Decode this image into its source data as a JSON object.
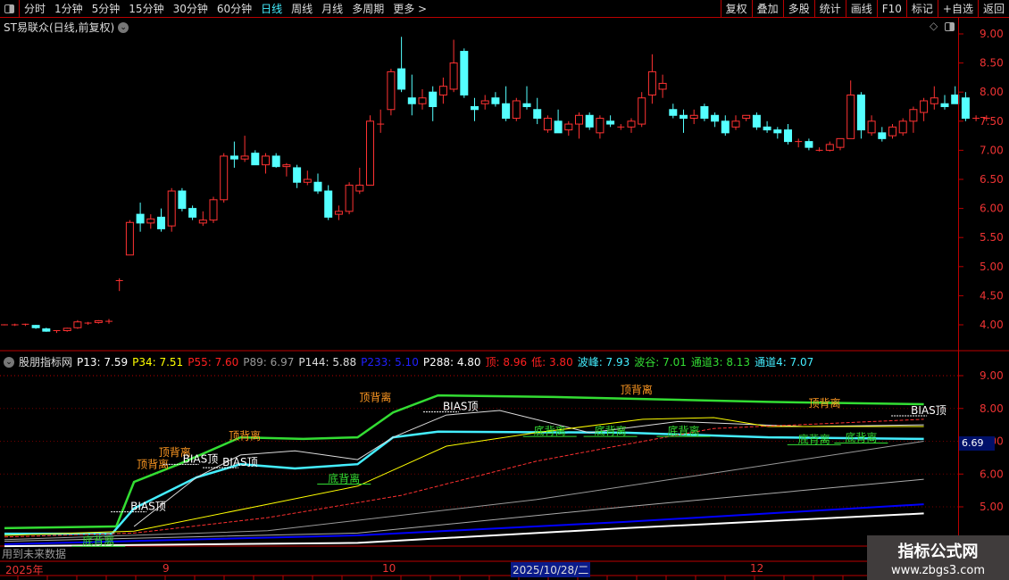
{
  "toolbar": {
    "periods": [
      "分时",
      "1分钟",
      "5分钟",
      "15分钟",
      "30分钟",
      "60分钟",
      "日线",
      "周线",
      "月线",
      "多周期",
      "更多 >"
    ],
    "active": "日线",
    "right_buttons": [
      "复权",
      "叠加",
      "多股",
      "统计",
      "画线",
      "F10",
      "标记",
      "+自选",
      "返回"
    ]
  },
  "stock_title": "ST易联众(日线,前复权)",
  "colors": {
    "up": "#ff3232",
    "down": "#54ffff",
    "grid_red": "#b00000",
    "green": "#33dd33",
    "cyan": "#44eeff",
    "yellow": "#ffff00",
    "blue": "#0000ff",
    "orange": "#ff9922"
  },
  "price_axis": {
    "ticks": [
      "9.00",
      "8.50",
      "8.00",
      "7.50",
      "7.00",
      "6.50",
      "6.00",
      "5.50",
      "5.00",
      "4.50",
      "4.00"
    ]
  },
  "candles": [
    [
      4.0,
      4.01,
      3.99,
      4.0
    ],
    [
      4.0,
      4.02,
      3.98,
      4.0
    ],
    [
      4.0,
      4.02,
      3.98,
      4.01
    ],
    [
      3.99,
      4.0,
      3.93,
      3.95
    ],
    [
      3.93,
      3.95,
      3.88,
      3.89
    ],
    [
      3.88,
      3.9,
      3.86,
      3.9
    ],
    [
      3.9,
      3.95,
      3.88,
      3.94
    ],
    [
      3.95,
      4.08,
      3.93,
      4.05
    ],
    [
      4.03,
      4.05,
      4.0,
      4.03
    ],
    [
      4.04,
      4.08,
      4.02,
      4.07
    ],
    [
      4.06,
      4.1,
      4.02,
      4.06
    ],
    [
      4.75,
      4.8,
      4.58,
      4.76
    ],
    [
      5.2,
      5.8,
      5.2,
      5.76
    ],
    [
      5.9,
      6.1,
      5.6,
      5.75
    ],
    [
      5.75,
      5.9,
      5.65,
      5.82
    ],
    [
      5.85,
      6.0,
      5.6,
      5.65
    ],
    [
      5.7,
      6.35,
      5.6,
      6.3
    ],
    [
      6.3,
      6.35,
      5.95,
      6.0
    ],
    [
      6.0,
      6.05,
      5.8,
      5.85
    ],
    [
      5.75,
      5.95,
      5.7,
      5.8
    ],
    [
      5.8,
      6.2,
      5.75,
      6.15
    ],
    [
      6.15,
      6.95,
      6.1,
      6.9
    ],
    [
      6.9,
      7.15,
      6.7,
      6.85
    ],
    [
      6.85,
      7.25,
      6.8,
      6.9
    ],
    [
      6.95,
      7.0,
      6.75,
      6.75
    ],
    [
      6.75,
      6.95,
      6.6,
      6.9
    ],
    [
      6.9,
      6.95,
      6.7,
      6.72
    ],
    [
      6.72,
      6.78,
      6.55,
      6.75
    ],
    [
      6.7,
      6.75,
      6.35,
      6.45
    ],
    [
      6.45,
      6.65,
      6.4,
      6.5
    ],
    [
      6.45,
      6.6,
      6.25,
      6.3
    ],
    [
      6.3,
      6.4,
      5.8,
      5.85
    ],
    [
      5.9,
      6.05,
      5.8,
      5.95
    ],
    [
      5.95,
      6.45,
      5.9,
      6.4
    ],
    [
      6.3,
      6.7,
      6.25,
      6.4
    ],
    [
      6.4,
      7.6,
      6.4,
      7.5
    ],
    [
      7.45,
      7.7,
      7.3,
      7.45
    ],
    [
      7.7,
      8.4,
      7.6,
      8.35
    ],
    [
      8.4,
      8.95,
      8.0,
      8.05
    ],
    [
      7.9,
      8.3,
      7.6,
      7.8
    ],
    [
      7.8,
      8.05,
      7.7,
      7.9
    ],
    [
      8.0,
      8.1,
      7.5,
      7.75
    ],
    [
      7.95,
      8.25,
      7.8,
      8.1
    ],
    [
      8.05,
      8.9,
      8.0,
      8.5
    ],
    [
      8.7,
      8.75,
      7.9,
      7.95
    ],
    [
      7.75,
      7.9,
      7.5,
      7.7
    ],
    [
      7.8,
      7.95,
      7.7,
      7.85
    ],
    [
      7.9,
      8.0,
      7.75,
      7.8
    ],
    [
      7.8,
      8.1,
      7.5,
      7.55
    ],
    [
      7.55,
      7.9,
      7.5,
      7.85
    ],
    [
      7.8,
      8.1,
      7.7,
      7.75
    ],
    [
      7.7,
      7.9,
      7.45,
      7.55
    ],
    [
      7.35,
      7.6,
      7.3,
      7.55
    ],
    [
      7.5,
      7.7,
      7.3,
      7.3
    ],
    [
      7.35,
      7.5,
      7.25,
      7.45
    ],
    [
      7.45,
      7.65,
      7.2,
      7.6
    ],
    [
      7.6,
      7.65,
      7.35,
      7.4
    ],
    [
      7.3,
      7.6,
      7.2,
      7.55
    ],
    [
      7.5,
      7.6,
      7.4,
      7.45
    ],
    [
      7.4,
      7.45,
      7.35,
      7.4
    ],
    [
      7.4,
      7.55,
      7.3,
      7.5
    ],
    [
      7.45,
      8.0,
      7.4,
      7.9
    ],
    [
      7.95,
      8.65,
      7.8,
      8.35
    ],
    [
      8.05,
      8.3,
      7.9,
      8.15
    ],
    [
      7.7,
      7.8,
      7.55,
      7.6
    ],
    [
      7.6,
      7.7,
      7.3,
      7.55
    ],
    [
      7.55,
      7.7,
      7.45,
      7.6
    ],
    [
      7.75,
      7.8,
      7.5,
      7.55
    ],
    [
      7.6,
      7.65,
      7.4,
      7.5
    ],
    [
      7.5,
      7.6,
      7.25,
      7.3
    ],
    [
      7.4,
      7.6,
      7.35,
      7.5
    ],
    [
      7.55,
      7.6,
      7.5,
      7.6
    ],
    [
      7.6,
      7.65,
      7.35,
      7.4
    ],
    [
      7.4,
      7.5,
      7.3,
      7.35
    ],
    [
      7.35,
      7.4,
      7.2,
      7.3
    ],
    [
      7.35,
      7.45,
      7.1,
      7.15
    ],
    [
      7.15,
      7.2,
      7.05,
      7.15
    ],
    [
      7.15,
      7.2,
      7.0,
      7.05
    ],
    [
      7.0,
      7.05,
      6.98,
      7.0
    ],
    [
      7.0,
      7.15,
      6.98,
      7.1
    ],
    [
      7.05,
      7.2,
      7.0,
      7.2
    ],
    [
      7.2,
      8.2,
      7.2,
      7.95
    ],
    [
      7.95,
      8.0,
      7.2,
      7.35
    ],
    [
      7.3,
      7.6,
      7.25,
      7.5
    ],
    [
      7.3,
      7.4,
      7.15,
      7.2
    ],
    [
      7.25,
      7.45,
      7.2,
      7.4
    ],
    [
      7.3,
      7.55,
      7.25,
      7.5
    ],
    [
      7.5,
      7.75,
      7.3,
      7.7
    ],
    [
      7.65,
      7.9,
      7.5,
      7.85
    ],
    [
      7.8,
      8.1,
      7.7,
      7.9
    ],
    [
      7.8,
      7.95,
      7.7,
      7.75
    ],
    [
      7.95,
      8.1,
      7.8,
      7.8
    ],
    [
      7.9,
      8.0,
      7.5,
      7.55
    ],
    [
      7.55,
      7.6,
      7.5,
      7.55
    ],
    [
      7.55,
      7.6,
      7.5,
      7.55
    ]
  ],
  "indicator": {
    "name": "股朋指标网",
    "values": [
      {
        "label": "P13: 7.59",
        "color": "#ffffff"
      },
      {
        "label": "P34: 7.51",
        "color": "#ffff00"
      },
      {
        "label": "P55: 7.60",
        "color": "#ff2020"
      },
      {
        "label": "P89: 6.97",
        "color": "#999999"
      },
      {
        "label": "P144: 5.88",
        "color": "#dddddd"
      },
      {
        "label": "P233: 5.10",
        "color": "#2020ff"
      },
      {
        "label": "P288: 4.80",
        "color": "#ffffff"
      },
      {
        "label": "顶: 8.96",
        "color": "#ff2020"
      },
      {
        "label": "低: 3.80",
        "color": "#ff2020"
      },
      {
        "label": "波峰: 7.93",
        "color": "#44eeff"
      },
      {
        "label": "波谷: 7.01",
        "color": "#33dd33"
      },
      {
        "label": "通道3: 8.13",
        "color": "#33dd33"
      },
      {
        "label": "通道4: 7.07",
        "color": "#44eeff"
      }
    ],
    "axis_ticks": [
      "9.00",
      "8.00",
      "7.00",
      "6.00",
      "5.00"
    ],
    "current_value": "6.69",
    "lines": [
      {
        "color": "#33dd33",
        "width": 2.5,
        "points": [
          [
            0,
            4.35
          ],
          [
            10.7,
            4.4
          ],
          [
            12.4,
            5.76
          ],
          [
            16.7,
            6.3
          ],
          [
            22.6,
            7.12
          ],
          [
            28.6,
            7.07
          ],
          [
            33.8,
            7.12
          ],
          [
            37.2,
            7.88
          ],
          [
            41.5,
            8.4
          ],
          [
            52.6,
            8.35
          ],
          [
            73.1,
            8.2
          ],
          [
            88.0,
            8.13
          ]
        ]
      },
      {
        "color": "#44eeff",
        "width": 2.5,
        "points": [
          [
            0,
            4.18
          ],
          [
            10.3,
            4.18
          ],
          [
            12.4,
            4.95
          ],
          [
            18.4,
            5.9
          ],
          [
            22.6,
            6.3
          ],
          [
            27.8,
            6.17
          ],
          [
            33.8,
            6.3
          ],
          [
            37.2,
            7.12
          ],
          [
            41.5,
            7.29
          ],
          [
            59.4,
            7.26
          ],
          [
            73.1,
            7.12
          ],
          [
            88.0,
            7.07
          ]
        ]
      },
      {
        "color": "#dddddd",
        "width": 1,
        "points": [
          [
            12.4,
            4.4
          ],
          [
            18.4,
            5.9
          ],
          [
            22.6,
            6.58
          ],
          [
            27.8,
            6.71
          ],
          [
            33.8,
            6.44
          ],
          [
            37.2,
            7.12
          ],
          [
            42.3,
            7.8
          ],
          [
            47.4,
            7.94
          ],
          [
            56.0,
            7.26
          ],
          [
            64.5,
            7.6
          ],
          [
            76.5,
            7.45
          ],
          [
            88.0,
            7.5
          ]
        ]
      },
      {
        "color": "#ffff00",
        "width": 1,
        "points": [
          [
            0,
            4.13
          ],
          [
            12.4,
            4.26
          ],
          [
            25.2,
            5.08
          ],
          [
            33.8,
            5.63
          ],
          [
            42.3,
            6.85
          ],
          [
            50.9,
            7.26
          ],
          [
            61.1,
            7.67
          ],
          [
            67.9,
            7.72
          ],
          [
            73.1,
            7.45
          ],
          [
            88.0,
            7.45
          ]
        ]
      },
      {
        "color": "#ff3030",
        "width": 1,
        "dashed": true,
        "points": [
          [
            0,
            4.08
          ],
          [
            12.4,
            4.2
          ],
          [
            25.2,
            4.67
          ],
          [
            38.0,
            5.35
          ],
          [
            50.9,
            6.39
          ],
          [
            59.4,
            6.9
          ],
          [
            67.9,
            7.39
          ],
          [
            88.0,
            7.67
          ]
        ]
      },
      {
        "color": "#999999",
        "width": 1,
        "points": [
          [
            0,
            4.0
          ],
          [
            25.2,
            4.27
          ],
          [
            50.9,
            5.22
          ],
          [
            67.9,
            6.03
          ],
          [
            88.0,
            7.0
          ]
        ]
      },
      {
        "color": "#aaaaaa",
        "width": 1,
        "points": [
          [
            0,
            3.95
          ],
          [
            33.8,
            4.2
          ],
          [
            59.4,
            5.0
          ],
          [
            88.0,
            5.84
          ]
        ]
      },
      {
        "color": "#0000ff",
        "width": 2,
        "points": [
          [
            0,
            3.86
          ],
          [
            33.8,
            4.13
          ],
          [
            59.4,
            4.54
          ],
          [
            88.0,
            5.08
          ]
        ]
      },
      {
        "color": "#ffffff",
        "width": 2,
        "points": [
          [
            0,
            3.8
          ],
          [
            33.8,
            3.9
          ],
          [
            59.4,
            4.35
          ],
          [
            88.0,
            4.8
          ]
        ]
      }
    ],
    "annotations": [
      {
        "text": "顶背离",
        "type": "top",
        "i": 35.5,
        "v": 8.22
      },
      {
        "text": "顶背离",
        "type": "top",
        "i": 23.0,
        "v": 7.05
      },
      {
        "text": "顶背离",
        "type": "top",
        "i": 16.3,
        "v": 6.55
      },
      {
        "text": "顶背离",
        "type": "top",
        "i": 14.2,
        "v": 6.18
      },
      {
        "text": "顶背离",
        "type": "top",
        "i": 60.5,
        "v": 8.45
      },
      {
        "text": "顶背离",
        "type": "top",
        "i": 78.5,
        "v": 8.05
      },
      {
        "text": "底背离",
        "type": "bottom",
        "i": 32.5,
        "v": 5.75
      },
      {
        "text": "底背离",
        "type": "bottom",
        "i": 52.2,
        "v": 7.2
      },
      {
        "text": "底背离",
        "type": "bottom",
        "i": 58.0,
        "v": 7.2
      },
      {
        "text": "底背离",
        "type": "bottom",
        "i": 65.0,
        "v": 7.2
      },
      {
        "text": "底背离",
        "type": "bottom",
        "i": 77.5,
        "v": 6.95
      },
      {
        "text": "底背离",
        "type": "bottom",
        "i": 82.0,
        "v": 7.0
      },
      {
        "text": "底背离",
        "type": "bottom",
        "i": 9.0,
        "v": 3.85
      },
      {
        "text": "BIAS顶",
        "type": "bias",
        "i": 43.5,
        "v": 7.95
      },
      {
        "text": "BIAS顶",
        "type": "bias",
        "i": 13.6,
        "v": 4.9
      },
      {
        "text": "BIAS顶",
        "type": "bias",
        "i": 18.6,
        "v": 6.35
      },
      {
        "text": "BIAS顶",
        "type": "bias",
        "i": 22.4,
        "v": 6.25
      },
      {
        "text": "BIAS顶",
        "type": "bias",
        "i": 88.3,
        "v": 7.83
      }
    ],
    "future_note": "用到未来数据"
  },
  "date_axis": {
    "labels": [
      "2025年",
      "9",
      "10",
      "12"
    ],
    "current": "2025/10/28/二"
  },
  "watermark": {
    "title": "指标公式网",
    "url": "www.zbgs3.com"
  }
}
